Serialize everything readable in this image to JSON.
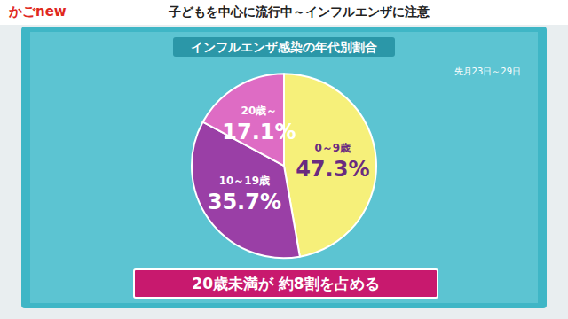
{
  "chart_data": {
    "type": "pie",
    "title": "インフルエンザ感染の年代別割合",
    "subtitle": "先月23日～29日",
    "categories": [
      "0～9歳",
      "10～19歳",
      "20歳～"
    ],
    "values": [
      47.3,
      35.7,
      17.1
    ],
    "value_labels": [
      "47.3%",
      "35.7%",
      "17.1%"
    ],
    "colors": [
      "#f6f07a",
      "#9a3fa6",
      "#de6cc4"
    ],
    "data_labels": true,
    "legend": false,
    "annotations": [
      "子どもを中心に流行中～インフルエンザに注意",
      "かごnew",
      "20歳未満が 約8割を占める"
    ]
  }
}
